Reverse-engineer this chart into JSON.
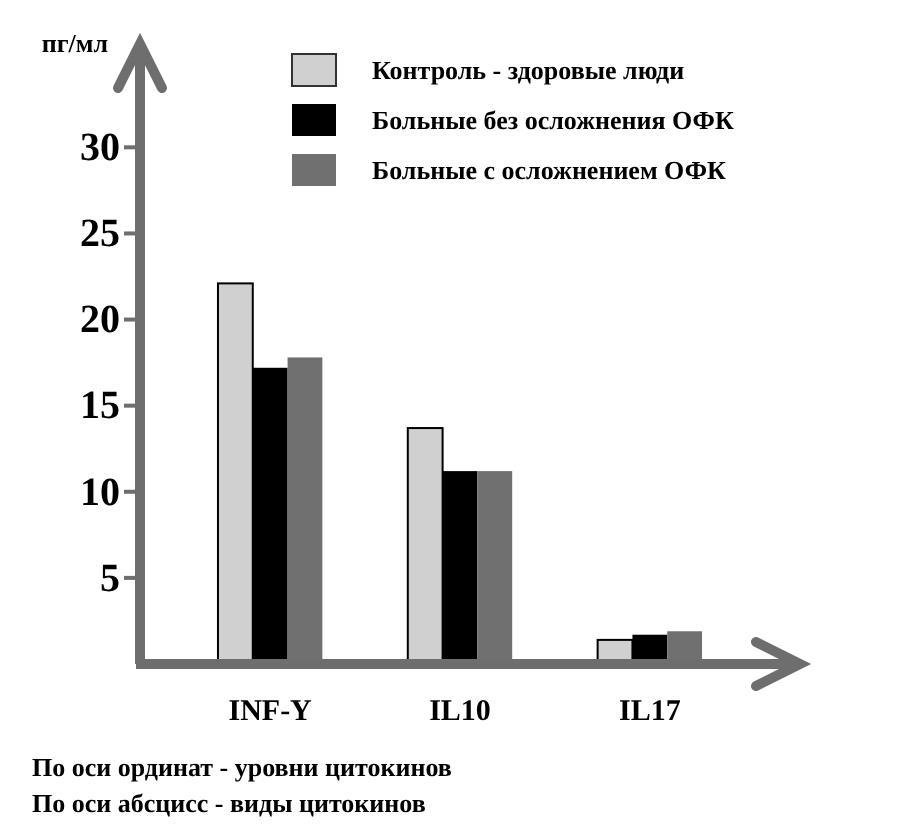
{
  "chart_data": {
    "type": "bar",
    "ylabel": "пг/мл",
    "categories": [
      "INF-Y",
      "IL10",
      "IL17"
    ],
    "series": [
      {
        "name": "Контроль - здоровые люди",
        "color": "#d0d0d0",
        "values": [
          22.1,
          13.7,
          1.4
        ]
      },
      {
        "name": "Больные без осложнения ОФК",
        "color": "#000000",
        "values": [
          17.2,
          11.2,
          1.7
        ]
      },
      {
        "name": "Больные с осложнением ОФК",
        "color": "#707070",
        "values": [
          17.8,
          11.2,
          1.9
        ]
      }
    ],
    "ylim": [
      0,
      36
    ],
    "yticks": [
      5,
      10,
      15,
      20,
      25,
      30
    ],
    "grid": false,
    "legend": "top right",
    "annotations": [
      "По оси ординат - уровни цитокинов",
      "По оси абсцисс - виды цитокинов"
    ]
  }
}
